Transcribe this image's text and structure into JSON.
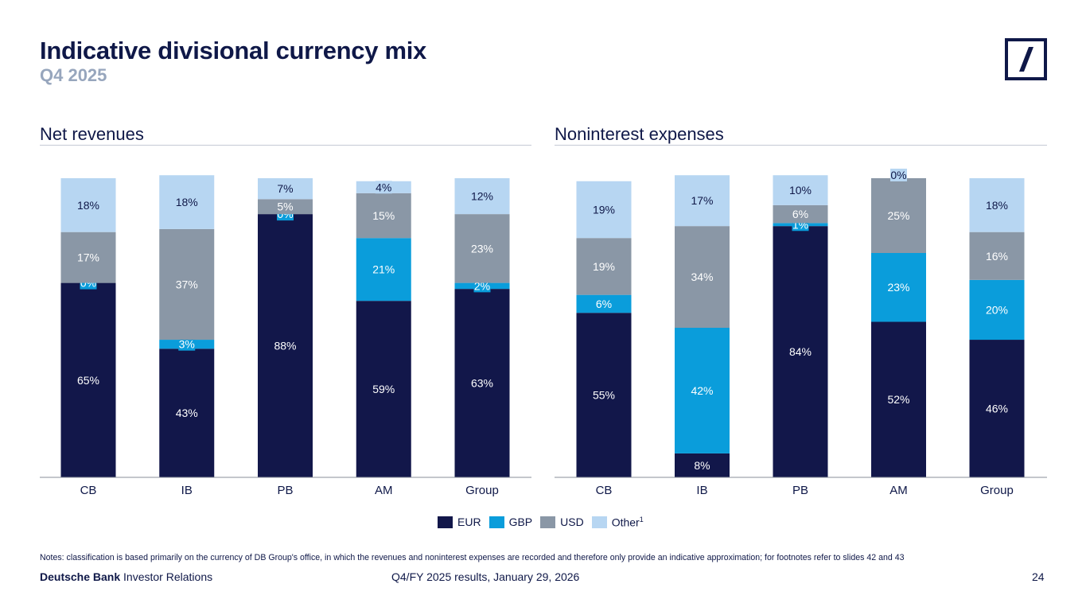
{
  "header": {
    "title": "Indicative divisional currency mix",
    "subtitle": "Q4 2025"
  },
  "colors": {
    "EUR": "#12174a",
    "GBP": "#0a9ddb",
    "USD": "#8a97a6",
    "Other": "#b7d6f2",
    "title": "#0f1848",
    "subtitle": "#97a6bd",
    "logo": "#0f1848"
  },
  "legend": {
    "items": [
      {
        "key": "EUR",
        "label": "EUR"
      },
      {
        "key": "GBP",
        "label": "GBP"
      },
      {
        "key": "USD",
        "label": "USD"
      },
      {
        "key": "Other",
        "label": "Other",
        "sup": "1"
      }
    ]
  },
  "chart_data": [
    {
      "type": "bar",
      "stacked": true,
      "title": "Net revenues",
      "categories": [
        "CB",
        "IB",
        "PB",
        "AM",
        "Group"
      ],
      "series": [
        {
          "name": "EUR",
          "values": [
            65,
            43,
            88,
            59,
            63
          ]
        },
        {
          "name": "GBP",
          "values": [
            0,
            3,
            0,
            21,
            2
          ]
        },
        {
          "name": "USD",
          "values": [
            17,
            37,
            5,
            15,
            23
          ]
        },
        {
          "name": "Other",
          "values": [
            18,
            18,
            7,
            4,
            12
          ]
        }
      ],
      "unit": "%",
      "ylim": [
        0,
        100
      ]
    },
    {
      "type": "bar",
      "stacked": true,
      "title": "Noninterest expenses",
      "categories": [
        "CB",
        "IB",
        "PB",
        "AM",
        "Group"
      ],
      "series": [
        {
          "name": "EUR",
          "values": [
            55,
            8,
            84,
            52,
            46
          ]
        },
        {
          "name": "GBP",
          "values": [
            6,
            42,
            1,
            23,
            20
          ]
        },
        {
          "name": "USD",
          "values": [
            19,
            34,
            6,
            25,
            16
          ]
        },
        {
          "name": "Other",
          "values": [
            19,
            17,
            10,
            0,
            18
          ]
        }
      ],
      "unit": "%",
      "ylim": [
        0,
        100
      ]
    }
  ],
  "notes": "Notes: classification is based primarily on the currency of DB Group's office, in which the revenues and noninterest expenses are recorded and therefore only provide an indicative approximation; for footnotes refer to slides 42 and 43",
  "footer": {
    "brand_bold": "Deutsche Bank",
    "brand_rest": "Investor Relations",
    "center": "Q4/FY 2025 results, January 29, 2026",
    "page": "24"
  }
}
